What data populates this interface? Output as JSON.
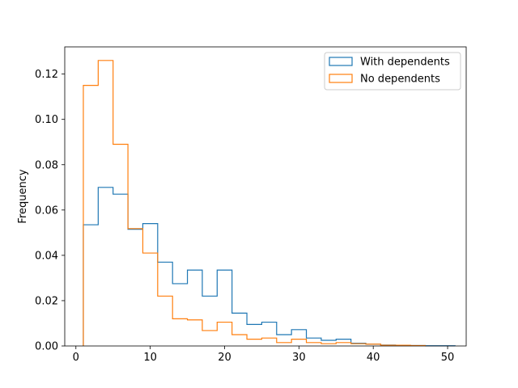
{
  "chart_data": {
    "type": "histogram-step",
    "ylabel": "Frequency",
    "xlabel": "",
    "xlim": [
      -1.5,
      52.5
    ],
    "ylim": [
      0,
      0.132
    ],
    "x_ticks": [
      0,
      10,
      20,
      30,
      40,
      50
    ],
    "x_tick_labels": [
      "0",
      "10",
      "20",
      "30",
      "40",
      "50"
    ],
    "y_ticks": [
      0.0,
      0.02,
      0.04,
      0.06,
      0.08,
      0.1,
      0.12
    ],
    "y_tick_labels": [
      "0.00",
      "0.02",
      "0.04",
      "0.06",
      "0.08",
      "0.10",
      "0.12"
    ],
    "legend_position": "top-right",
    "series": [
      {
        "name": "With dependents",
        "color": "#1f77b4",
        "bin_edges": [
          1,
          3,
          5,
          7,
          9,
          11,
          13,
          15,
          17,
          19,
          21,
          23,
          25,
          27,
          29,
          31,
          33,
          35,
          37,
          39,
          41,
          43,
          45,
          47,
          49,
          51
        ],
        "values": [
          0.0535,
          0.07,
          0.067,
          0.0515,
          0.054,
          0.037,
          0.0275,
          0.0335,
          0.022,
          0.0335,
          0.0145,
          0.0095,
          0.0105,
          0.005,
          0.0072,
          0.0035,
          0.0025,
          0.003,
          0.0012,
          0.0008,
          0.0004,
          0.0003,
          0.0002,
          0.0001,
          0.0001
        ]
      },
      {
        "name": "No dependents",
        "color": "#ff7f0e",
        "bin_edges": [
          1,
          3,
          5,
          7,
          9,
          11,
          13,
          15,
          17,
          19,
          21,
          23,
          25,
          27,
          29,
          31,
          33,
          35,
          37,
          39,
          41,
          43,
          45,
          47
        ],
        "values": [
          0.115,
          0.126,
          0.089,
          0.0518,
          0.041,
          0.022,
          0.012,
          0.0115,
          0.0068,
          0.0105,
          0.005,
          0.003,
          0.0035,
          0.0015,
          0.003,
          0.0015,
          0.001,
          0.0015,
          0.001,
          0.0008,
          0.0003,
          0.0003,
          0.0002
        ]
      }
    ]
  }
}
